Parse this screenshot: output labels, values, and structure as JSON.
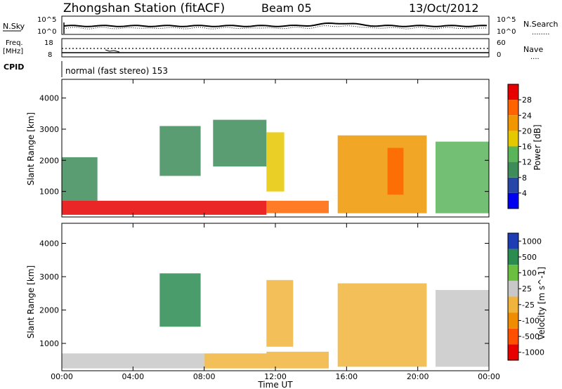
{
  "header": {
    "station": "Zhongshan Station (fitACF)",
    "beam": "Beam 05",
    "date": "13/Oct/2012"
  },
  "noise_panel": {
    "left_label": "N.Sky",
    "left_ticks": [
      "10^5",
      "10^0"
    ],
    "right_ticks": [
      "10^5",
      "10^0"
    ],
    "right_label": "N.Search",
    "right_legend": "........"
  },
  "freq_panel": {
    "left_label_1": "Freq.",
    "left_label_2": "[MHz]",
    "left_ticks": [
      "18",
      "8"
    ],
    "right_ticks": [
      "60",
      "0"
    ],
    "right_label": "Nave",
    "right_legend": "...."
  },
  "cpid_panel": {
    "label": "CPID",
    "text": "normal (fast stereo) 153"
  },
  "colors": {
    "power_scale": [
      "#0000f0",
      "#2846a8",
      "#3d8c5a",
      "#5ab45a",
      "#e6c800",
      "#f09600",
      "#ff6400",
      "#e60000"
    ],
    "velocity_scale": [
      "#1e3cb4",
      "#2a8c50",
      "#6abf40",
      "#c8c8c8",
      "#f0b43c",
      "#f08c00",
      "#ff5000",
      "#e60000"
    ]
  },
  "chart_data": [
    {
      "type": "heatmap",
      "title": "",
      "xlabel": "",
      "ylabel": "Slant Range [km]",
      "x_ticks": [
        "00:00",
        "04:00",
        "08:00",
        "12:00",
        "16:00",
        "20:00",
        "00:00"
      ],
      "y_ticks": [
        "1000",
        "2000",
        "3000",
        "4000"
      ],
      "xlim": [
        0,
        24
      ],
      "ylim": [
        180,
        4600
      ],
      "colorbar": {
        "label": "Power [dB]",
        "ticks": [
          "4",
          "8",
          "12",
          "16",
          "20",
          "24",
          "28"
        ],
        "range": [
          0,
          32
        ]
      },
      "regions": [
        {
          "x": [
            0.0,
            11.5
          ],
          "y": [
            250,
            700
          ],
          "value": 28
        },
        {
          "x": [
            0.0,
            2.0
          ],
          "y": [
            700,
            2100
          ],
          "value": 8
        },
        {
          "x": [
            5.5,
            7.8
          ],
          "y": [
            1500,
            3100
          ],
          "value": 10
        },
        {
          "x": [
            8.5,
            11.5
          ],
          "y": [
            1800,
            3300
          ],
          "value": 8
        },
        {
          "x": [
            11.5,
            15.0
          ],
          "y": [
            300,
            700
          ],
          "value": 24
        },
        {
          "x": [
            11.5,
            12.5
          ],
          "y": [
            1000,
            2900
          ],
          "value": 16
        },
        {
          "x": [
            15.5,
            20.5
          ],
          "y": [
            300,
            2800
          ],
          "value": 20
        },
        {
          "x": [
            18.3,
            19.2
          ],
          "y": [
            900,
            2400
          ],
          "value": 26
        },
        {
          "x": [
            21.0,
            24.0
          ],
          "y": [
            300,
            2600
          ],
          "value": 12
        }
      ]
    },
    {
      "type": "heatmap",
      "title": "",
      "xlabel": "Time UT",
      "ylabel": "Slant Range [km]",
      "x_ticks": [
        "00:00",
        "04:00",
        "08:00",
        "12:00",
        "16:00",
        "20:00",
        "00:00"
      ],
      "y_ticks": [
        "1000",
        "2000",
        "3000",
        "4000"
      ],
      "xlim": [
        0,
        24
      ],
      "ylim": [
        180,
        4600
      ],
      "colorbar": {
        "label": "Velocity [m s^-1]",
        "ticks": [
          "1000",
          "500",
          "100",
          "25",
          "-25",
          "-100",
          "-500",
          "-1000"
        ],
        "range": [
          -1200,
          1200
        ]
      },
      "regions": [
        {
          "x": [
            0.0,
            8.0
          ],
          "y": [
            250,
            700
          ],
          "value": 50
        },
        {
          "x": [
            8.0,
            11.5
          ],
          "y": [
            250,
            700
          ],
          "value": -150
        },
        {
          "x": [
            5.5,
            7.8
          ],
          "y": [
            1500,
            3100
          ],
          "value": 700
        },
        {
          "x": [
            11.5,
            15.0
          ],
          "y": [
            250,
            750
          ],
          "value": -200
        },
        {
          "x": [
            11.5,
            13.0
          ],
          "y": [
            900,
            2900
          ],
          "value": -200
        },
        {
          "x": [
            15.5,
            20.5
          ],
          "y": [
            300,
            2800
          ],
          "value": -150
        },
        {
          "x": [
            21.0,
            24.0
          ],
          "y": [
            300,
            2600
          ],
          "value": 50
        }
      ]
    }
  ]
}
